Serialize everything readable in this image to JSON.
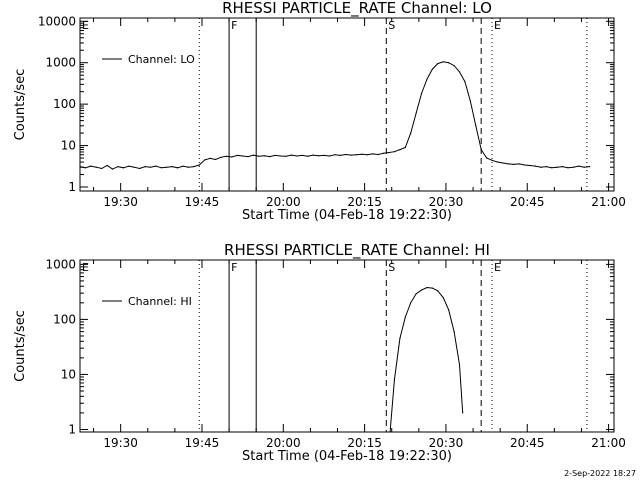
{
  "footer": {
    "timestamp": "2-Sep-2022 18:27"
  },
  "chart_data": [
    {
      "type": "line",
      "title": "RHESSI PARTICLE_RATE Channel: LO",
      "xlabel": "Start Time (04-Feb-18 19:22:30)",
      "ylabel": "Counts/sec",
      "x_unit": "minutes since 19:22:30",
      "xlim": [
        0,
        98.5
      ],
      "ylim": [
        0.8,
        12000
      ],
      "yscale": "log",
      "xticks": [
        7.5,
        22.5,
        37.5,
        52.5,
        67.5,
        82.5,
        97.5
      ],
      "xtick_labels": [
        "19:30",
        "19:45",
        "20:00",
        "20:15",
        "20:30",
        "20:45",
        "21:00"
      ],
      "yticks": [
        1,
        10,
        100,
        1000,
        10000
      ],
      "ytick_labels": [
        "1",
        "10",
        "100",
        "1000",
        "10000"
      ],
      "legend": {
        "label": "Channel: LO",
        "position": "top-left"
      },
      "series": [
        {
          "name": "Channel: LO",
          "points": [
            [
              0,
              3.1
            ],
            [
              1,
              2.9
            ],
            [
              2,
              3.2
            ],
            [
              3,
              3.0
            ],
            [
              4,
              2.8
            ],
            [
              5,
              3.3
            ],
            [
              6,
              2.7
            ],
            [
              7,
              3.1
            ],
            [
              8,
              2.9
            ],
            [
              9,
              3.2
            ],
            [
              10,
              3.0
            ],
            [
              11,
              2.8
            ],
            [
              12,
              3.1
            ],
            [
              13,
              3.0
            ],
            [
              14,
              3.2
            ],
            [
              15,
              2.9
            ],
            [
              16,
              3.0
            ],
            [
              17,
              3.1
            ],
            [
              18,
              2.9
            ],
            [
              19,
              3.2
            ],
            [
              20,
              3.0
            ],
            [
              21,
              3.1
            ],
            [
              22,
              3.4
            ],
            [
              23,
              4.5
            ],
            [
              24,
              4.9
            ],
            [
              25,
              4.6
            ],
            [
              26,
              5.2
            ],
            [
              27,
              5.5
            ],
            [
              28,
              5.3
            ],
            [
              29,
              5.8
            ],
            [
              30,
              5.6
            ],
            [
              31,
              5.4
            ],
            [
              32,
              5.9
            ],
            [
              33,
              5.5
            ],
            [
              34,
              5.7
            ],
            [
              35,
              5.4
            ],
            [
              36,
              5.8
            ],
            [
              37,
              5.6
            ],
            [
              38,
              5.5
            ],
            [
              39,
              5.9
            ],
            [
              40,
              5.6
            ],
            [
              41,
              5.8
            ],
            [
              42,
              5.5
            ],
            [
              43,
              5.9
            ],
            [
              44,
              5.7
            ],
            [
              45,
              5.8
            ],
            [
              46,
              5.6
            ],
            [
              47,
              6.0
            ],
            [
              48,
              5.8
            ],
            [
              49,
              6.1
            ],
            [
              50,
              5.9
            ],
            [
              51,
              6.0
            ],
            [
              52,
              6.2
            ],
            [
              53,
              6.0
            ],
            [
              54,
              6.3
            ],
            [
              55,
              6.1
            ],
            [
              56,
              6.5
            ],
            [
              57,
              6.8
            ],
            [
              58,
              7.1
            ],
            [
              59,
              8.0
            ],
            [
              60,
              9.0
            ],
            [
              61,
              20
            ],
            [
              62,
              60
            ],
            [
              63,
              180
            ],
            [
              64,
              400
            ],
            [
              65,
              700
            ],
            [
              66,
              950
            ],
            [
              67,
              1050
            ],
            [
              68,
              1000
            ],
            [
              69,
              850
            ],
            [
              70,
              600
            ],
            [
              71,
              350
            ],
            [
              72,
              120
            ],
            [
              73,
              30
            ],
            [
              74,
              8
            ],
            [
              75,
              5.0
            ],
            [
              76,
              4.4
            ],
            [
              77,
              4.0
            ],
            [
              78,
              3.8
            ],
            [
              79,
              3.6
            ],
            [
              80,
              3.5
            ],
            [
              81,
              3.6
            ],
            [
              82,
              3.4
            ],
            [
              83,
              3.3
            ],
            [
              84,
              3.2
            ],
            [
              85,
              3.0
            ],
            [
              86,
              3.1
            ],
            [
              87,
              2.9
            ],
            [
              88,
              3.0
            ],
            [
              89,
              3.1
            ],
            [
              90,
              2.9
            ],
            [
              91,
              3.0
            ],
            [
              92,
              3.2
            ],
            [
              93,
              3.0
            ],
            [
              94,
              3.1
            ]
          ]
        }
      ],
      "event_markers": [
        {
          "label": "E",
          "x": 0,
          "style": "dotted"
        },
        {
          "label": "",
          "x": 22,
          "style": "dotted"
        },
        {
          "label": "F",
          "x": 27.5,
          "style": "solid"
        },
        {
          "label": "",
          "x": 32.5,
          "style": "solid"
        },
        {
          "label": "S",
          "x": 56.5,
          "style": "dashed"
        },
        {
          "label": "",
          "x": 74,
          "style": "dashed"
        },
        {
          "label": "E",
          "x": 76,
          "style": "dotted"
        },
        {
          "label": "",
          "x": 93.5,
          "style": "dotted"
        }
      ]
    },
    {
      "type": "line",
      "title": "RHESSI PARTICLE_RATE Channel: HI",
      "xlabel": "Start Time (04-Feb-18 19:22:30)",
      "ylabel": "Counts/sec",
      "x_unit": "minutes since 19:22:30",
      "xlim": [
        0,
        98.5
      ],
      "ylim": [
        0.9,
        1200
      ],
      "yscale": "log",
      "xticks": [
        7.5,
        22.5,
        37.5,
        52.5,
        67.5,
        82.5,
        97.5
      ],
      "xtick_labels": [
        "19:30",
        "19:45",
        "20:00",
        "20:15",
        "20:30",
        "20:45",
        "21:00"
      ],
      "yticks": [
        1,
        10,
        100,
        1000
      ],
      "ytick_labels": [
        "1",
        "10",
        "100",
        "1000"
      ],
      "legend": {
        "label": "Channel: HI",
        "position": "top-left"
      },
      "series": [
        {
          "name": "Channel: HI",
          "points": [
            [
              57.2,
              0.9
            ],
            [
              58,
              8
            ],
            [
              59,
              45
            ],
            [
              60,
              110
            ],
            [
              61,
              200
            ],
            [
              62,
              290
            ],
            [
              63,
              340
            ],
            [
              64,
              380
            ],
            [
              65,
              370
            ],
            [
              66,
              330
            ],
            [
              67,
              250
            ],
            [
              68,
              150
            ],
            [
              69,
              60
            ],
            [
              70,
              15
            ],
            [
              70.6,
              2
            ]
          ]
        }
      ],
      "event_markers": [
        {
          "label": "E",
          "x": 0,
          "style": "dotted"
        },
        {
          "label": "",
          "x": 22,
          "style": "dotted"
        },
        {
          "label": "F",
          "x": 27.5,
          "style": "solid"
        },
        {
          "label": "",
          "x": 32.5,
          "style": "solid"
        },
        {
          "label": "S",
          "x": 56.5,
          "style": "dashed"
        },
        {
          "label": "",
          "x": 74,
          "style": "dashed"
        },
        {
          "label": "E",
          "x": 76,
          "style": "dotted"
        },
        {
          "label": "",
          "x": 93.5,
          "style": "dotted"
        }
      ]
    }
  ]
}
